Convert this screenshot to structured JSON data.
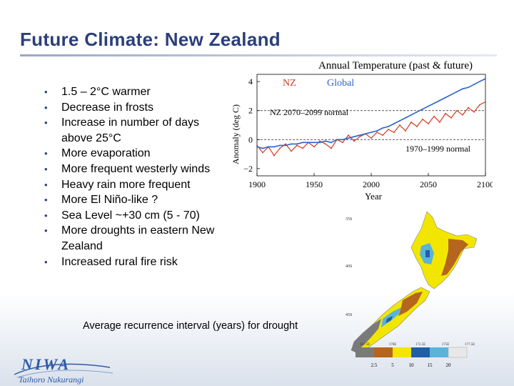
{
  "slide": {
    "title": "Future Climate: New Zealand",
    "bullets": [
      "1.5 – 2°C warmer",
      "Decrease in frosts",
      "Increase in number of days above 25°C",
      "More evaporation",
      "More frequent westerly winds",
      "Heavy rain more frequent",
      "More El Niño-like ?",
      "Sea Level ~+30 cm (5 - 70)",
      "More droughts in eastern New Zealand",
      "Increased rural fire risk"
    ],
    "bullet_glyph": "•",
    "caption": "Average recurrence interval (years) for drought",
    "logo": {
      "name": "NIWA",
      "subtitle": "Taihoro Nukurangi"
    }
  },
  "chart_data": {
    "type": "line",
    "title": "Annual Temperature (past & future)",
    "xlabel": "Year",
    "ylabel": "Anomaly (deg C)",
    "xlim": [
      1900,
      2100
    ],
    "ylim": [
      -2.5,
      4.5
    ],
    "xticks": [
      1900,
      1950,
      2000,
      2050,
      2100
    ],
    "yticks": [
      -2,
      0,
      2,
      4
    ],
    "ytick_labels": [
      "−2",
      "0",
      "2",
      "4"
    ],
    "legend": [
      {
        "name": "NZ",
        "color": "#d23a1e"
      },
      {
        "name": "Global",
        "color": "#2a63c9"
      }
    ],
    "annotations": {
      "nz_future_normal": "NZ 2070–2099 normal",
      "baseline_normal": "1970–1999 normal"
    },
    "reference_lines": [
      {
        "name": "NZ 2070–2099 normal",
        "y": 2.0
      },
      {
        "name": "1970–1999 normal",
        "y": 0.0
      }
    ],
    "series": [
      {
        "name": "NZ",
        "color": "#d23a1e",
        "x": [
          1900,
          1905,
          1910,
          1915,
          1920,
          1925,
          1930,
          1935,
          1940,
          1945,
          1950,
          1955,
          1960,
          1965,
          1970,
          1975,
          1980,
          1985,
          1990,
          1995,
          2000,
          2005,
          2010,
          2015,
          2020,
          2025,
          2030,
          2035,
          2040,
          2045,
          2050,
          2055,
          2060,
          2065,
          2070,
          2075,
          2080,
          2085,
          2090,
          2095,
          2100
        ],
        "values": [
          -0.4,
          -0.9,
          -0.5,
          -1.1,
          -0.6,
          -0.3,
          -0.8,
          -0.4,
          -0.6,
          -0.2,
          -0.5,
          -0.1,
          -0.3,
          -0.6,
          0.0,
          -0.2,
          0.3,
          -0.1,
          0.2,
          0.4,
          0.1,
          0.5,
          0.3,
          0.7,
          0.5,
          1.0,
          0.6,
          1.2,
          0.9,
          1.4,
          1.1,
          1.6,
          1.2,
          1.8,
          1.5,
          2.0,
          1.7,
          2.2,
          1.9,
          2.4,
          2.6
        ]
      },
      {
        "name": "Global",
        "color": "#2a63c9",
        "x": [
          1900,
          1905,
          1910,
          1915,
          1920,
          1925,
          1930,
          1935,
          1940,
          1945,
          1950,
          1955,
          1960,
          1965,
          1970,
          1975,
          1980,
          1985,
          1990,
          1995,
          2000,
          2005,
          2010,
          2015,
          2020,
          2025,
          2030,
          2035,
          2040,
          2045,
          2050,
          2055,
          2060,
          2065,
          2070,
          2075,
          2080,
          2085,
          2090,
          2095,
          2100
        ],
        "values": [
          -0.5,
          -0.6,
          -0.5,
          -0.5,
          -0.4,
          -0.4,
          -0.3,
          -0.3,
          -0.2,
          -0.2,
          -0.2,
          -0.2,
          -0.1,
          -0.2,
          0.0,
          0.0,
          0.1,
          0.2,
          0.3,
          0.4,
          0.5,
          0.6,
          0.8,
          0.9,
          1.1,
          1.3,
          1.5,
          1.7,
          1.9,
          2.1,
          2.3,
          2.5,
          2.7,
          2.9,
          3.1,
          3.3,
          3.5,
          3.6,
          3.8,
          4.0,
          4.2
        ]
      }
    ]
  },
  "map": {
    "latitude_labels": [
      "35S",
      "40S",
      "45S"
    ],
    "longitude_labels": [
      "167.5E",
      "170E",
      "172.5E",
      "175E",
      "177.5E"
    ],
    "legend_values": [
      "2.5",
      "5",
      "10",
      "15",
      "20"
    ],
    "legend_colors": [
      "#7a7a7a",
      "#b5651d",
      "#f2e600",
      "#1f5fa8",
      "#5ab4d8",
      "#e8e8e8"
    ]
  }
}
